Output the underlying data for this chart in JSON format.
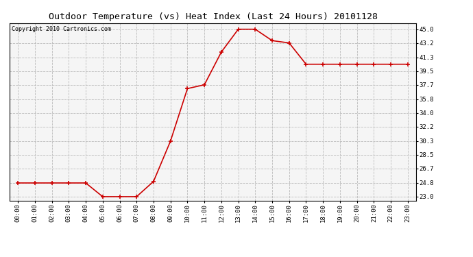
{
  "title": "Outdoor Temperature (vs) Heat Index (Last 24 Hours) 20101128",
  "copyright_text": "Copyright 2010 Cartronics.com",
  "x_labels": [
    "00:00",
    "01:00",
    "02:00",
    "03:00",
    "04:00",
    "05:00",
    "06:00",
    "07:00",
    "08:00",
    "09:00",
    "10:00",
    "11:00",
    "12:00",
    "13:00",
    "14:00",
    "15:00",
    "16:00",
    "17:00",
    "18:00",
    "19:00",
    "20:00",
    "21:00",
    "22:00",
    "23:00"
  ],
  "y_values": [
    24.8,
    24.8,
    24.8,
    24.8,
    24.8,
    23.0,
    23.0,
    23.0,
    25.0,
    30.3,
    37.2,
    37.7,
    42.0,
    45.0,
    45.0,
    43.5,
    43.2,
    40.4,
    40.4,
    40.4,
    40.4,
    40.4,
    40.4,
    40.4
  ],
  "y_ticks": [
    23.0,
    24.8,
    26.7,
    28.5,
    30.3,
    32.2,
    34.0,
    35.8,
    37.7,
    39.5,
    41.3,
    43.2,
    45.0
  ],
  "ylim": [
    22.5,
    45.8
  ],
  "line_color": "#cc0000",
  "marker_color": "#cc0000",
  "bg_color": "#ffffff",
  "plot_bg_color": "#f5f5f5",
  "grid_color": "#bbbbbb",
  "title_fontsize": 9.5,
  "copyright_fontsize": 6.0,
  "tick_fontsize": 6.5
}
